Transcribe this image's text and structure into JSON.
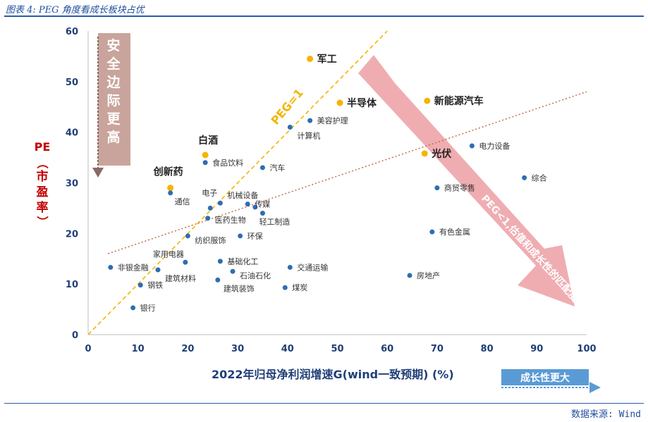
{
  "caption": "图表 4: PEG 角度看成长板块占优",
  "source": "数据来源: Wind",
  "y_axis_label": {
    "main": "PE",
    "paren_open": "（",
    "sub": "市盈率",
    "paren_close": "）"
  },
  "x_axis_label": "2022年归母净利润增速G(wind一致预期) (%)",
  "growth_box_label": "成长性更大",
  "safety_label": "安全边际更高",
  "peg1_label": "PEG=1",
  "peg_note": "PEG<1,估值和成长性的匹配度更高",
  "colors": {
    "blue_dot": "#2e6db5",
    "gold_dot": "#f5b400",
    "peg_line": "#f5b400",
    "trend_line": "#c0643c",
    "safety_box": "#c9a49c",
    "big_arrow": "#ec9fa5",
    "axis_blue": "#1f3e78",
    "red_label": "#c00000"
  },
  "chart_data": {
    "type": "scatter",
    "xlim": [
      0,
      100
    ],
    "ylim": [
      0,
      60
    ],
    "x_ticks": [
      0,
      10,
      20,
      30,
      40,
      50,
      60,
      70,
      80,
      90,
      100
    ],
    "y_ticks": [
      0,
      10,
      20,
      30,
      40,
      50,
      60
    ],
    "grid": false,
    "reference_lines": [
      {
        "label": "PEG=1",
        "from": [
          0,
          0
        ],
        "to": [
          60,
          60
        ],
        "style": "dashed"
      },
      {
        "label": "",
        "from": [
          4,
          16
        ],
        "to": [
          100,
          48
        ],
        "style": "dotted"
      }
    ],
    "points": [
      {
        "label": "军工",
        "x": 44.5,
        "y": 54.5,
        "highlight": true
      },
      {
        "label": "半导体",
        "x": 50.5,
        "y": 45.8,
        "highlight": true
      },
      {
        "label": "新能源汽车",
        "x": 68,
        "y": 46.2,
        "highlight": true
      },
      {
        "label": "光伏",
        "x": 67.5,
        "y": 35.8,
        "highlight": true
      },
      {
        "label": "白酒",
        "x": 23.5,
        "y": 35.5,
        "highlight": true
      },
      {
        "label": "创新药",
        "x": 16.5,
        "y": 29,
        "highlight": true
      },
      {
        "label": "美容护理",
        "x": 44.5,
        "y": 42.3,
        "highlight": false
      },
      {
        "label": "计算机",
        "x": 40.5,
        "y": 41,
        "highlight": false
      },
      {
        "label": "食品饮料",
        "x": 23.5,
        "y": 34,
        "highlight": false
      },
      {
        "label": "汽车",
        "x": 35,
        "y": 33,
        "highlight": false
      },
      {
        "label": "电力设备",
        "x": 77,
        "y": 37.3,
        "highlight": false
      },
      {
        "label": "综合",
        "x": 87.5,
        "y": 31,
        "highlight": false
      },
      {
        "label": "通信",
        "x": 16.5,
        "y": 28,
        "highlight": false
      },
      {
        "label": "电子",
        "x": 24.5,
        "y": 25,
        "highlight": false
      },
      {
        "label": "机械设备",
        "x": 26.5,
        "y": 26,
        "highlight": false
      },
      {
        "label": "传媒",
        "x": 32,
        "y": 25.8,
        "highlight": false
      },
      {
        "label": "",
        "x": 33.5,
        "y": 25.2,
        "highlight": false
      },
      {
        "label": "医药生物",
        "x": 24,
        "y": 23,
        "highlight": false
      },
      {
        "label": "轻工制造",
        "x": 35,
        "y": 24,
        "highlight": false
      },
      {
        "label": "商贸零售",
        "x": 70,
        "y": 29,
        "highlight": false
      },
      {
        "label": "纺织服饰",
        "x": 20,
        "y": 19.5,
        "highlight": false
      },
      {
        "label": "环保",
        "x": 30.5,
        "y": 19.5,
        "highlight": false
      },
      {
        "label": "有色金属",
        "x": 69,
        "y": 20.3,
        "highlight": false
      },
      {
        "label": "家用电器",
        "x": 19.5,
        "y": 14.3,
        "highlight": false
      },
      {
        "label": "基础化工",
        "x": 26.5,
        "y": 14.5,
        "highlight": false
      },
      {
        "label": "非银金融",
        "x": 4.5,
        "y": 13.3,
        "highlight": false
      },
      {
        "label": "建筑材料",
        "x": 14,
        "y": 12.8,
        "highlight": false
      },
      {
        "label": "交通运输",
        "x": 40.5,
        "y": 13.3,
        "highlight": false
      },
      {
        "label": "石油石化",
        "x": 29,
        "y": 12.5,
        "highlight": false
      },
      {
        "label": "房地产",
        "x": 64.5,
        "y": 11.7,
        "highlight": false
      },
      {
        "label": "钢铁",
        "x": 10.5,
        "y": 9.8,
        "highlight": false
      },
      {
        "label": "建筑装饰",
        "x": 26,
        "y": 10.8,
        "highlight": false
      },
      {
        "label": "煤炭",
        "x": 39.5,
        "y": 9.3,
        "highlight": false
      },
      {
        "label": "银行",
        "x": 9,
        "y": 5.3,
        "highlight": false
      }
    ]
  }
}
